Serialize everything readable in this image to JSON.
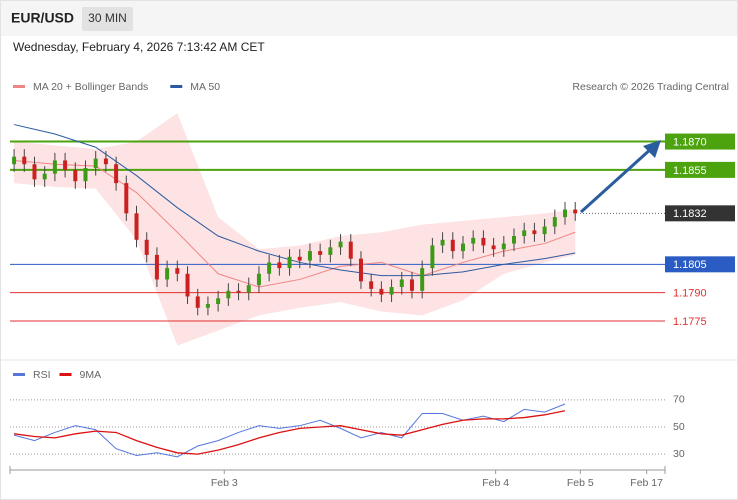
{
  "header": {
    "symbol": "EUR/USD",
    "timeframe": "30 MIN",
    "datetime": "Wednesday, February 4, 2026 7:13:42 AM CET"
  },
  "chart_data": [
    {
      "type": "candlestick",
      "credit": "Research © 2026 Trading Central",
      "up_color": "#3c9a18",
      "down_color": "#cc2020",
      "xlim": [
        -0.4,
        63.8
      ],
      "ylim": [
        1.1757,
        1.1892
      ],
      "open": [
        1.1858,
        1.1862,
        1.1858,
        1.185,
        1.1853,
        1.186,
        1.1855,
        1.1849,
        1.1856,
        1.1861,
        1.1858,
        1.1848,
        1.1832,
        1.1818,
        1.181,
        1.1797,
        1.1803,
        1.18,
        1.1788,
        1.1782,
        1.1784,
        1.1787,
        1.1791,
        1.179,
        1.1794,
        1.18,
        1.1806,
        1.1803,
        1.1809,
        1.1807,
        1.1812,
        1.181,
        1.1814,
        1.1817,
        1.1808,
        1.1796,
        1.1792,
        1.1789,
        1.1793,
        1.1797,
        1.1791,
        1.1803,
        1.1815,
        1.1818,
        1.1812,
        1.1816,
        1.1819,
        1.1815,
        1.1813,
        1.1816,
        1.182,
        1.1823,
        1.1821,
        1.1825,
        1.183,
        1.1834
      ],
      "high": [
        1.1866,
        1.1866,
        1.1862,
        1.1857,
        1.1864,
        1.1864,
        1.1859,
        1.186,
        1.1865,
        1.1865,
        1.1862,
        1.1852,
        1.1836,
        1.1822,
        1.1814,
        1.1807,
        1.1807,
        1.1804,
        1.1792,
        1.1788,
        1.1791,
        1.1795,
        1.1795,
        1.1798,
        1.1804,
        1.181,
        1.181,
        1.1813,
        1.1813,
        1.1816,
        1.1816,
        1.1818,
        1.1821,
        1.1821,
        1.1812,
        1.18,
        1.1796,
        1.1797,
        1.1801,
        1.1801,
        1.1807,
        1.1819,
        1.1822,
        1.1822,
        1.182,
        1.1823,
        1.1823,
        1.1819,
        1.182,
        1.1824,
        1.1827,
        1.1827,
        1.1829,
        1.1834,
        1.1838,
        1.1838
      ],
      "low": [
        1.1854,
        1.1854,
        1.1846,
        1.1846,
        1.1849,
        1.1851,
        1.1845,
        1.1845,
        1.1852,
        1.1854,
        1.1844,
        1.1828,
        1.1814,
        1.1806,
        1.1793,
        1.1793,
        1.1796,
        1.1784,
        1.1778,
        1.1778,
        1.178,
        1.1783,
        1.1786,
        1.1786,
        1.179,
        1.1796,
        1.1799,
        1.1799,
        1.1803,
        1.1803,
        1.1806,
        1.1806,
        1.181,
        1.1804,
        1.1792,
        1.1788,
        1.1785,
        1.1785,
        1.1789,
        1.1787,
        1.1787,
        1.1799,
        1.1811,
        1.1808,
        1.1808,
        1.1812,
        1.1811,
        1.1809,
        1.1809,
        1.1812,
        1.1816,
        1.1817,
        1.1817,
        1.1821,
        1.1826,
        1.1828
      ],
      "close": [
        1.1862,
        1.1858,
        1.185,
        1.1853,
        1.186,
        1.1855,
        1.1849,
        1.1856,
        1.1861,
        1.1858,
        1.1848,
        1.1832,
        1.1818,
        1.181,
        1.1797,
        1.1803,
        1.18,
        1.1788,
        1.1782,
        1.1784,
        1.1787,
        1.1791,
        1.179,
        1.1794,
        1.18,
        1.1806,
        1.1803,
        1.1809,
        1.1807,
        1.1812,
        1.181,
        1.1814,
        1.1817,
        1.1808,
        1.1796,
        1.1792,
        1.1789,
        1.1793,
        1.1797,
        1.1791,
        1.1803,
        1.1815,
        1.1818,
        1.1812,
        1.1816,
        1.1819,
        1.1815,
        1.1813,
        1.1816,
        1.182,
        1.1823,
        1.1821,
        1.1825,
        1.183,
        1.1834,
        1.1832
      ],
      "series": [
        {
          "name": "MA 20 + Bollinger Bands",
          "color": "#f08585",
          "band_color": "#fde3e3",
          "x": [
            0,
            4,
            8,
            12,
            16,
            20,
            24,
            28,
            32,
            36,
            40,
            44,
            48,
            52,
            55
          ],
          "values": [
            1.186,
            1.1858,
            1.1857,
            1.1843,
            1.1822,
            1.18,
            1.1793,
            1.1797,
            1.1804,
            1.1806,
            1.1799,
            1.1806,
            1.1812,
            1.1816,
            1.1822
          ],
          "upper": [
            1.187,
            1.1868,
            1.1866,
            1.187,
            1.1885,
            1.183,
            1.1813,
            1.1815,
            1.182,
            1.1822,
            1.1826,
            1.1828,
            1.183,
            1.1832,
            1.1834
          ],
          "lower": [
            1.1848,
            1.1846,
            1.1845,
            1.1818,
            1.1762,
            1.177,
            1.1778,
            1.1782,
            1.1785,
            1.178,
            1.1778,
            1.1786,
            1.18,
            1.1806,
            1.181
          ]
        },
        {
          "name": "MA 50",
          "color": "#2c5aa0",
          "x": [
            0,
            4,
            8,
            12,
            16,
            20,
            24,
            28,
            32,
            36,
            40,
            44,
            48,
            52,
            55
          ],
          "values": [
            1.1879,
            1.1874,
            1.1867,
            1.1852,
            1.1835,
            1.182,
            1.1812,
            1.1806,
            1.1802,
            1.1799,
            1.1799,
            1.1801,
            1.1805,
            1.1808,
            1.1811
          ]
        }
      ],
      "levels": [
        {
          "value": 1.187,
          "label": "1.1870",
          "color": "#4ca30d",
          "boxed": true,
          "dotted": false
        },
        {
          "value": 1.1855,
          "color": "#4ca30d",
          "boxed": true,
          "dotted": false
        },
        {
          "value": 1.1832,
          "color": "#333333",
          "boxed": true,
          "dotted": true
        },
        {
          "value": 1.1805,
          "color": "#2a5cc4",
          "boxed": true,
          "dotted": false
        },
        {
          "value": 1.179,
          "label": "1.1790",
          "color": "#e03030",
          "boxed": false,
          "dotted": false
        },
        {
          "value": 1.1775,
          "color": "#e03030",
          "boxed": false,
          "dotted": false
        }
      ]
    },
    {
      "type": "line",
      "xlim": [
        -0.4,
        63.8
      ],
      "ylim": [
        22,
        81
      ],
      "yticks": [
        30,
        50,
        70
      ],
      "grid": true,
      "xticks": [
        {
          "value": 20.6,
          "label": "Feb 3"
        },
        {
          "value": 47.2,
          "label": "Feb 4"
        },
        {
          "value": 55.5,
          "label": "Feb 5"
        },
        {
          "value": 62,
          "label": "Feb 17"
        }
      ],
      "x": [
        0,
        2,
        4,
        6,
        8,
        10,
        12,
        14,
        16,
        18,
        20,
        22,
        24,
        26,
        28,
        30,
        32,
        34,
        36,
        38,
        40,
        42,
        44,
        46,
        48,
        50,
        52,
        54
      ],
      "series": [
        {
          "name": "RSI",
          "color": "#5577dd",
          "values": [
            44,
            40,
            46,
            51,
            48,
            34,
            29,
            31,
            28,
            36,
            40,
            46,
            51,
            49,
            51,
            55,
            49,
            42,
            46,
            42,
            60,
            60,
            55,
            58,
            54,
            63,
            61,
            67
          ]
        },
        {
          "name": "9MA",
          "color": "#dd1111",
          "values": [
            45,
            43,
            42,
            45,
            47,
            46,
            40,
            35,
            31,
            30,
            33,
            37,
            42,
            46,
            49,
            50,
            51,
            48,
            45,
            44,
            48,
            52,
            55,
            56,
            56,
            57,
            59,
            62
          ]
        }
      ]
    }
  ]
}
